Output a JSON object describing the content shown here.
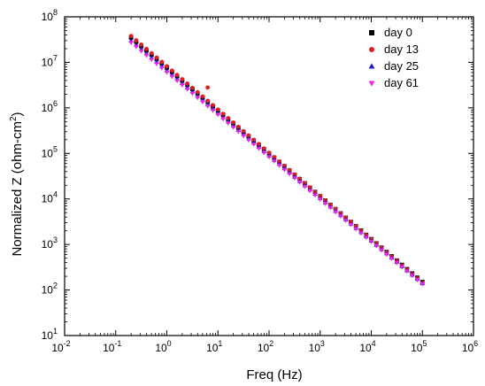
{
  "chart_data": {
    "type": "scatter",
    "xlabel": "Freq (Hz)",
    "ylabel_main": "Normalized Z (ohm-cm",
    "ylabel_sup": "2",
    "ylabel_close": ")",
    "xscale": "log",
    "yscale": "log",
    "xlim": [
      0.01,
      1000000
    ],
    "ylim": [
      10,
      100000000
    ],
    "x_ticks": [
      {
        "base": "10",
        "exp": "-2",
        "value": 0.01
      },
      {
        "base": "10",
        "exp": "-1",
        "value": 0.1
      },
      {
        "base": "10",
        "exp": "0",
        "value": 1
      },
      {
        "base": "10",
        "exp": "1",
        "value": 10
      },
      {
        "base": "10",
        "exp": "2",
        "value": 100
      },
      {
        "base": "10",
        "exp": "3",
        "value": 1000
      },
      {
        "base": "10",
        "exp": "4",
        "value": 10000
      },
      {
        "base": "10",
        "exp": "5",
        "value": 100000
      },
      {
        "base": "10",
        "exp": "6",
        "value": 1000000
      }
    ],
    "y_ticks": [
      {
        "base": "10",
        "exp": "1",
        "value": 10
      },
      {
        "base": "10",
        "exp": "2",
        "value": 100
      },
      {
        "base": "10",
        "exp": "3",
        "value": 1000
      },
      {
        "base": "10",
        "exp": "4",
        "value": 10000
      },
      {
        "base": "10",
        "exp": "5",
        "value": 100000
      },
      {
        "base": "10",
        "exp": "6",
        "value": 1000000
      },
      {
        "base": "10",
        "exp": "7",
        "value": 10000000
      },
      {
        "base": "10",
        "exp": "8",
        "value": 100000000
      }
    ],
    "legend_position": "top-right",
    "grid": false,
    "freq_range_hz": [
      0.2,
      100000
    ],
    "series": [
      {
        "name": "day 0",
        "marker": "square",
        "color": "#000000",
        "z_at_0_2hz": 35000000,
        "z_at_1e5hz": 150
      },
      {
        "name": "day 13",
        "marker": "circle",
        "color": "#e02020",
        "z_at_0_2hz": 38000000,
        "z_at_1e5hz": 145,
        "outlier": {
          "x": 6.3,
          "y": 2800000
        }
      },
      {
        "name": "day 25",
        "marker": "triangle-up",
        "color": "#1a1acc",
        "z_at_0_2hz": 30000000,
        "z_at_1e5hz": 140
      },
      {
        "name": "day 61",
        "marker": "triangle-down",
        "color": "#ee22ee",
        "z_at_0_2hz": 27000000,
        "z_at_1e5hz": 135
      }
    ]
  }
}
